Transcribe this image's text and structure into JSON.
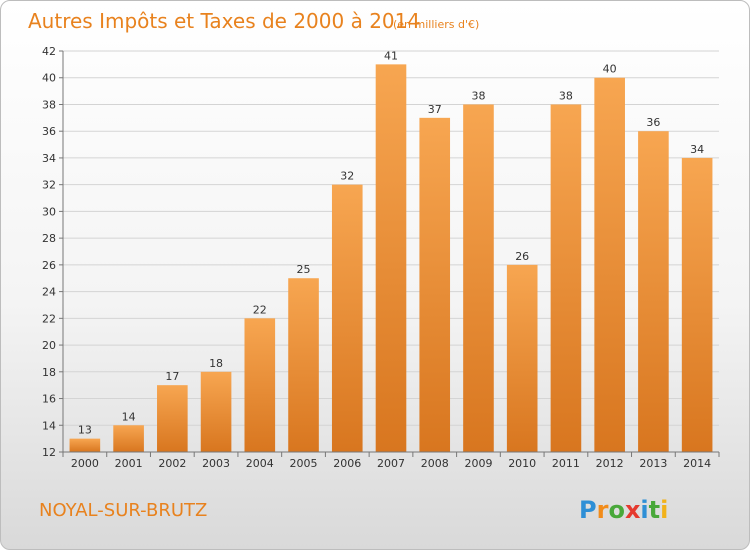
{
  "title": "Autres Impôts et Taxes de 2000 à 2014",
  "subtitle": "(en milliers d'€)",
  "location": "NOYAL-SUR-BRUTZ",
  "logo": {
    "text": "Proxiti",
    "letter_colors": [
      "#2e8fd6",
      "#f28c1a",
      "#49a83a",
      "#e53a2f",
      "#2e8fd6",
      "#49a83a",
      "#f2b21a"
    ]
  },
  "colors": {
    "bar_light": "#f7a651",
    "bar_dark": "#d8761f",
    "grid": "#d4d4d4"
  },
  "chart_data": {
    "type": "bar",
    "title": "Autres Impôts et Taxes de 2000 à 2014",
    "subtitle": "(en milliers d'€)",
    "categories": [
      "2000",
      "2001",
      "2002",
      "2003",
      "2004",
      "2005",
      "2006",
      "2007",
      "2008",
      "2009",
      "2010",
      "2011",
      "2012",
      "2013",
      "2014"
    ],
    "values": [
      13,
      14,
      17,
      18,
      22,
      25,
      32,
      41,
      37,
      38,
      26,
      38,
      40,
      36,
      34
    ],
    "ylim": [
      12,
      42
    ],
    "ytick_step": 2,
    "grid": true,
    "data_labels": true
  }
}
